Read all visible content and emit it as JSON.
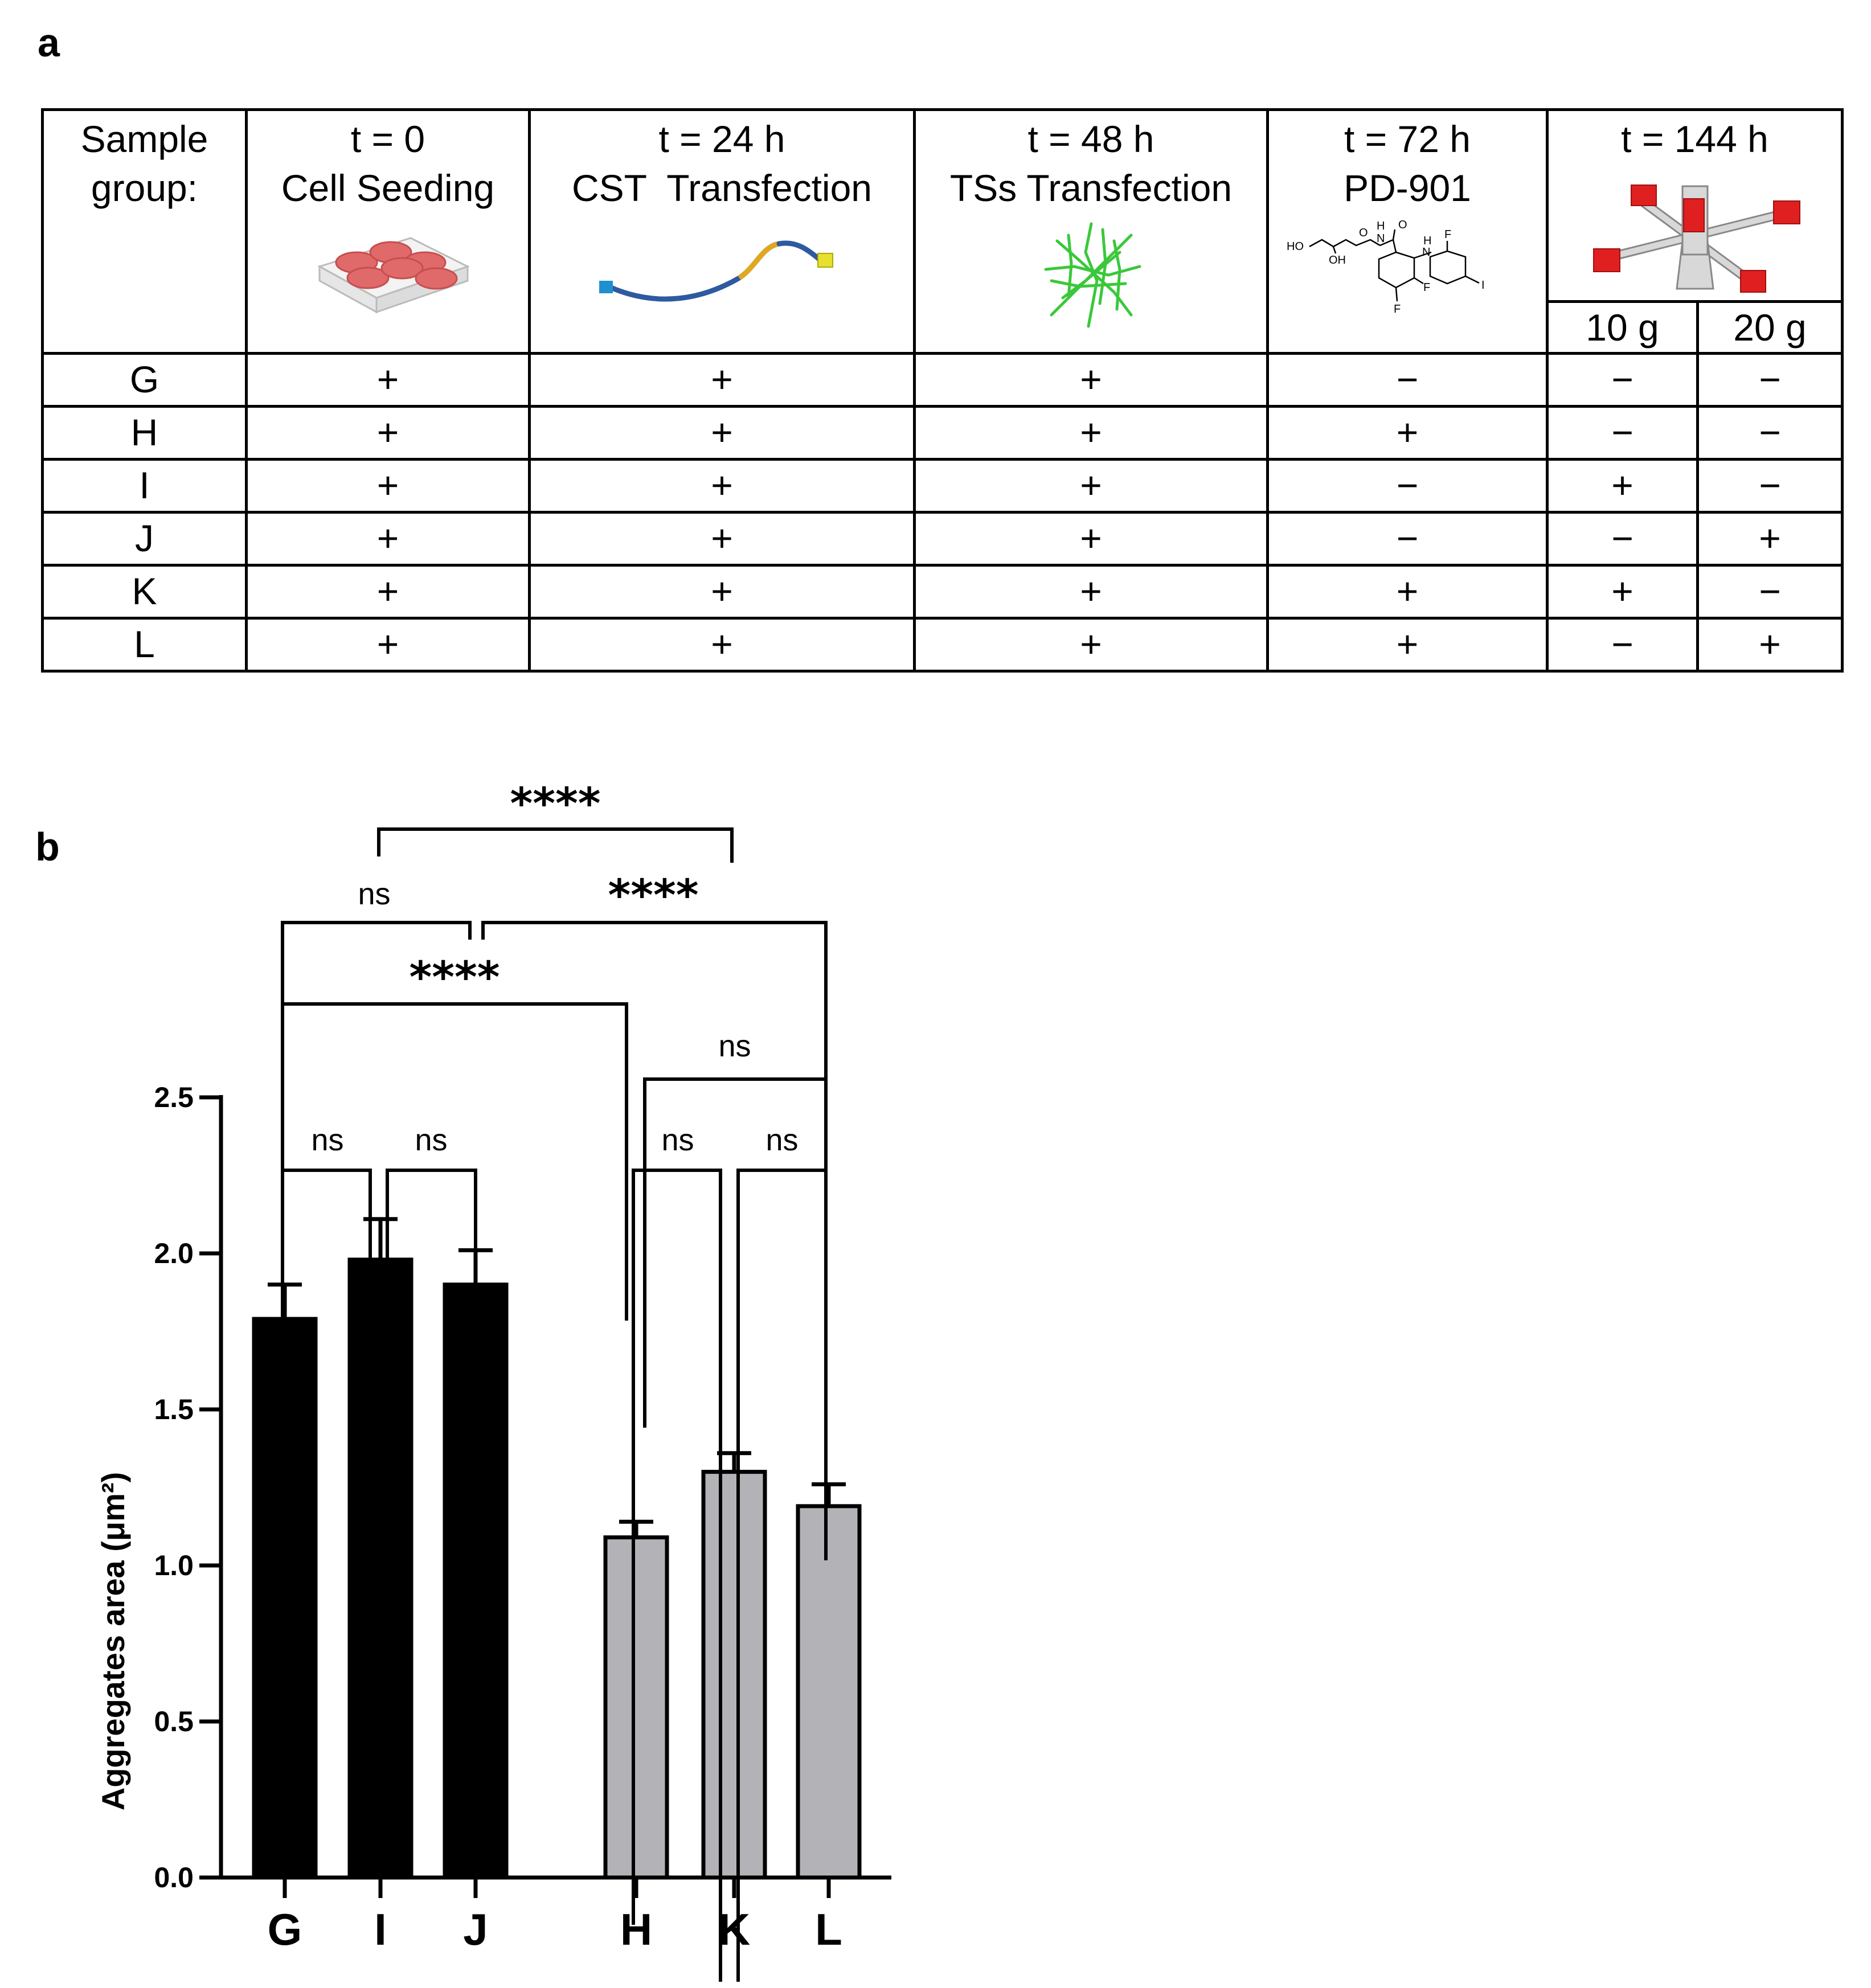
{
  "panels": {
    "a": "a",
    "b": "b"
  },
  "table": {
    "corner_line1": "Sample",
    "corner_line2": "group:",
    "columns": [
      {
        "line1": "t = 0",
        "line2": "Cell Seeding",
        "illustration": "six-well-plate-icon"
      },
      {
        "line1": "t = 24 h",
        "line2": "CST  Transfection",
        "illustration": "tube-strand-icon"
      },
      {
        "line1": "t = 48 h",
        "line2": "TSs Transfection",
        "illustration": "green-network-icon"
      },
      {
        "line1": "t = 72 h",
        "line2": "PD-901",
        "illustration": "chemical-structure-icon"
      },
      {
        "line1": "t = 144 h",
        "line2": "",
        "illustration": "centrifuge-device-icon",
        "subcolumns": [
          "10 g",
          "20 g"
        ]
      }
    ],
    "chem_labels": {
      "ho": "HO",
      "oh": "OH",
      "nh_top": "H",
      "n": "N",
      "o1": "O",
      "o2": "O",
      "nh2": "H",
      "n2": "N",
      "f1": "F",
      "f2": "F",
      "f3": "F",
      "i": "I"
    },
    "rows": [
      {
        "group": "G",
        "values": [
          "+",
          "+",
          "+",
          "−",
          "−",
          "−"
        ]
      },
      {
        "group": "H",
        "values": [
          "+",
          "+",
          "+",
          "+",
          "−",
          "−"
        ]
      },
      {
        "group": "I",
        "values": [
          "+",
          "+",
          "+",
          "−",
          "+",
          "−"
        ]
      },
      {
        "group": "J",
        "values": [
          "+",
          "+",
          "+",
          "−",
          "−",
          "+"
        ]
      },
      {
        "group": "K",
        "values": [
          "+",
          "+",
          "+",
          "+",
          "+",
          "−"
        ]
      },
      {
        "group": "L",
        "values": [
          "+",
          "+",
          "+",
          "+",
          "−",
          "+"
        ]
      }
    ]
  },
  "chart_data": {
    "type": "bar",
    "title": "",
    "ylabel": "Aggregates area (μm²)",
    "ylim": [
      0,
      2.5
    ],
    "yticks": [
      "0.0",
      "0.5",
      "1.0",
      "1.5",
      "2.0",
      "2.5"
    ],
    "categories": [
      "G",
      "I",
      "J",
      "H",
      "K",
      "L"
    ],
    "values": [
      1.79,
      1.98,
      1.9,
      1.09,
      1.3,
      1.19
    ],
    "errors": [
      0.11,
      0.13,
      0.11,
      0.05,
      0.06,
      0.07
    ],
    "colors": [
      "#000000",
      "#000000",
      "#000000",
      "#b3b3b7",
      "#b3b3b7",
      "#b3b3b7"
    ],
    "comparisons": [
      {
        "from": "G",
        "to": "I",
        "label": "ns"
      },
      {
        "from": "I",
        "to": "J",
        "label": "ns"
      },
      {
        "from": "H",
        "to": "K",
        "label": "ns"
      },
      {
        "from": "K",
        "to": "L",
        "label": "ns"
      },
      {
        "from": "H",
        "to": "L",
        "label": "ns"
      },
      {
        "from": "G",
        "to": "H",
        "label": "****"
      },
      {
        "from": "G",
        "to": "I-J",
        "label": "ns"
      },
      {
        "from": "I-J",
        "to": "L",
        "label": "****"
      },
      {
        "from": "G-I",
        "to": "K",
        "label": "****"
      }
    ]
  }
}
